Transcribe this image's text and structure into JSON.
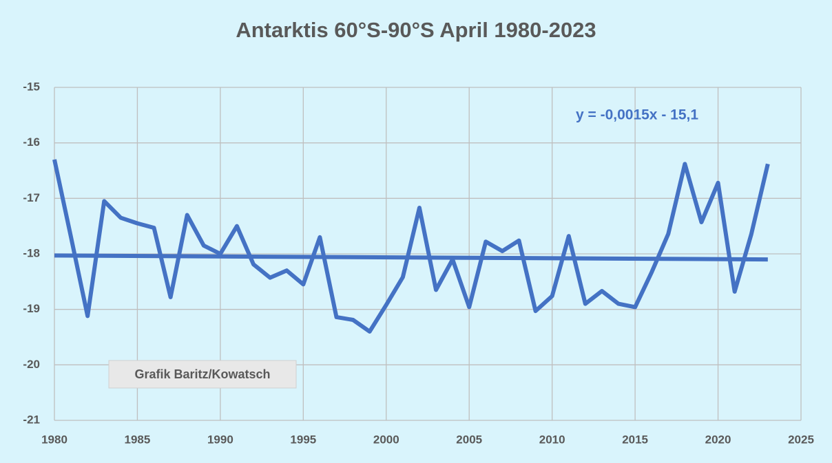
{
  "chart_data": {
    "type": "line",
    "title": "Antarktis 60°S-90°S April 1980-2023",
    "annotation": "y = -0,0015x - 15,1",
    "watermark": "Grafik Baritz/Kowatsch",
    "x": [
      1980,
      1981,
      1982,
      1983,
      1984,
      1985,
      1986,
      1987,
      1988,
      1989,
      1990,
      1991,
      1992,
      1993,
      1994,
      1995,
      1996,
      1997,
      1998,
      1999,
      2000,
      2001,
      2002,
      2003,
      2004,
      2005,
      2006,
      2007,
      2008,
      2009,
      2010,
      2011,
      2012,
      2013,
      2014,
      2015,
      2016,
      2017,
      2018,
      2019,
      2020,
      2021,
      2022,
      2023
    ],
    "series": [
      {
        "color": "#4472c4",
        "values": [
          -16.3,
          -17.7,
          -19.12,
          -17.05,
          -17.35,
          -17.45,
          -17.53,
          -18.78,
          -17.3,
          -17.85,
          -18.0,
          -17.5,
          -18.19,
          -18.43,
          -18.3,
          -18.55,
          -17.7,
          -19.14,
          -19.19,
          -19.4,
          -18.92,
          -18.42,
          -17.17,
          -18.65,
          -18.1,
          -18.96,
          -17.78,
          -17.95,
          -17.76,
          -19.03,
          -18.76,
          -17.68,
          -18.9,
          -18.67,
          -18.9,
          -18.96,
          -18.33,
          -17.64,
          -16.38,
          -17.43,
          -16.72,
          -18.68,
          -17.65,
          -16.38
        ]
      }
    ],
    "trend": {
      "color": "#4472c4",
      "x": [
        1980,
        2023
      ],
      "values": [
        -18.03,
        -18.1
      ]
    },
    "xlim": [
      1980,
      2025
    ],
    "xticks": [
      1980,
      1985,
      1990,
      1995,
      2000,
      2005,
      2010,
      2015,
      2020,
      2025
    ],
    "ylim": [
      -21,
      -15
    ],
    "yticks": [
      -21,
      -20,
      -19,
      -18,
      -17,
      -16,
      -15
    ],
    "grid": true
  }
}
